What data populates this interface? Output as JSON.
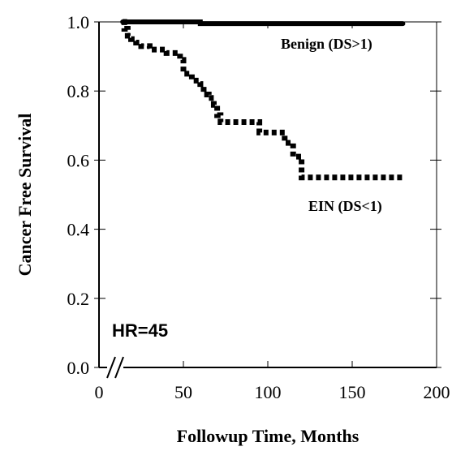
{
  "chart_data": {
    "type": "line",
    "step": true,
    "xlabel": "Followup Time, Months",
    "ylabel": "Cancer Free Survival",
    "xlim": [
      0,
      200
    ],
    "ylim": [
      0,
      1.0
    ],
    "x_ticks": [
      {
        "value": 0,
        "label": "0"
      },
      {
        "value": 50,
        "label": "50"
      },
      {
        "value": 100,
        "label": "100"
      },
      {
        "value": 150,
        "label": "150"
      },
      {
        "value": 200,
        "label": "200"
      }
    ],
    "y_ticks": [
      {
        "value": 0,
        "label": "0.0"
      },
      {
        "value": 0.2,
        "label": "0.2"
      },
      {
        "value": 0.4,
        "label": "0.4"
      },
      {
        "value": 0.6,
        "label": "0.6"
      },
      {
        "value": 0.8,
        "label": "0.8"
      },
      {
        "value": 1.0,
        "label": "1.0"
      }
    ],
    "grid": false,
    "axis_break_marker": "x-axis near origin",
    "series": [
      {
        "name": "Benign (DS>1)",
        "style": "solid",
        "color": "#000000",
        "x": [
          14,
          60,
          180
        ],
        "y": [
          1.0,
          0.995,
          0.995
        ]
      },
      {
        "name": "EIN (DS<1)",
        "style": "dotted",
        "color": "#000000",
        "x": [
          14,
          15,
          17,
          19,
          22,
          25,
          30,
          40,
          48,
          50,
          55,
          60,
          62,
          65,
          68,
          70,
          72,
          95,
          110,
          115,
          120,
          180
        ],
        "y": [
          1.0,
          0.98,
          0.96,
          0.95,
          0.94,
          0.93,
          0.92,
          0.91,
          0.89,
          0.85,
          0.83,
          0.82,
          0.79,
          0.78,
          0.76,
          0.73,
          0.71,
          0.68,
          0.65,
          0.61,
          0.55,
          0.55
        ]
      }
    ],
    "annotations": [
      {
        "text": "HR=45"
      }
    ]
  }
}
